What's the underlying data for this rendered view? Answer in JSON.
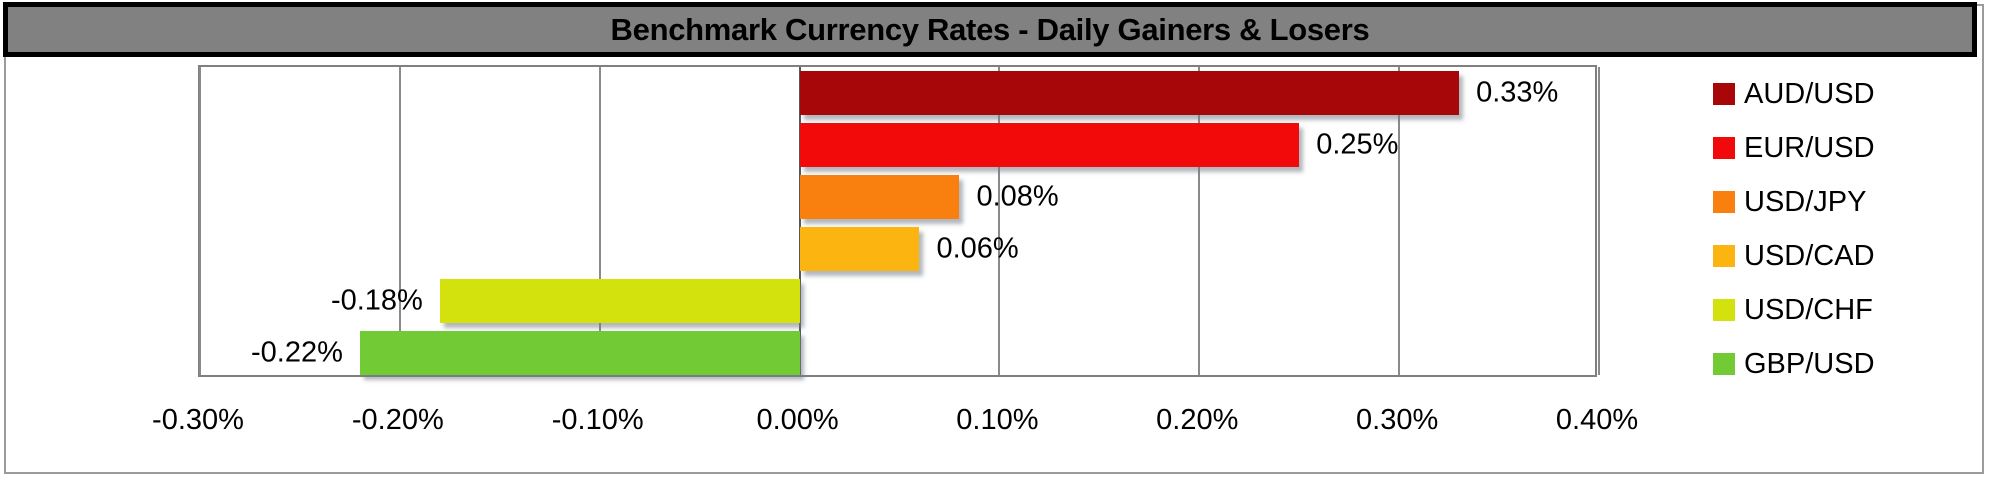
{
  "window": {
    "title_bar_text": "Benchmark Currency Rates - Daily Gainers & Losers"
  },
  "chart_data": {
    "type": "bar",
    "orientation": "horizontal",
    "title": "Benchmark Currency Rates - Daily Gainers & Losers",
    "categories": [
      "AUD/USD",
      "EUR/USD",
      "USD/JPY",
      "USD/CAD",
      "USD/CHF",
      "GBP/USD"
    ],
    "values": [
      0.33,
      0.25,
      0.08,
      0.06,
      -0.18,
      -0.22
    ],
    "value_labels": [
      "0.33%",
      "0.25%",
      "0.08%",
      "0.06%",
      "-0.18%",
      "-0.22%"
    ],
    "bar_colors": [
      "#a80709",
      "#f20a0a",
      "#f97f0e",
      "#fbb410",
      "#d3e10d",
      "#72ca34"
    ],
    "xlabel": "",
    "ylabel": "",
    "xlim": [
      -0.3,
      0.4
    ],
    "x_ticks": [
      -0.3,
      -0.2,
      -0.1,
      0,
      0.1,
      0.2,
      0.3,
      0.4
    ],
    "x_tick_labels": [
      "-0.30%",
      "-0.20%",
      "-0.10%",
      "0.00%",
      "0.10%",
      "0.20%",
      "0.30%",
      "0.40%"
    ],
    "grid": true,
    "data_labels": "outside-end",
    "legend_position": "right",
    "legend": [
      "AUD/USD",
      "EUR/USD",
      "USD/JPY",
      "USD/CAD",
      "USD/CHF",
      "GBP/USD"
    ],
    "colors": {
      "title_bar_bg": "#818181",
      "title_bar_border": "#000000",
      "title_text": "#000000",
      "plot_border": "#7f7f7f",
      "gridline": "#8a8a8a",
      "zero_line": "#595959",
      "outer_border": "#9b9b9b",
      "label_text": "#000000",
      "background": "#ffffff"
    }
  }
}
